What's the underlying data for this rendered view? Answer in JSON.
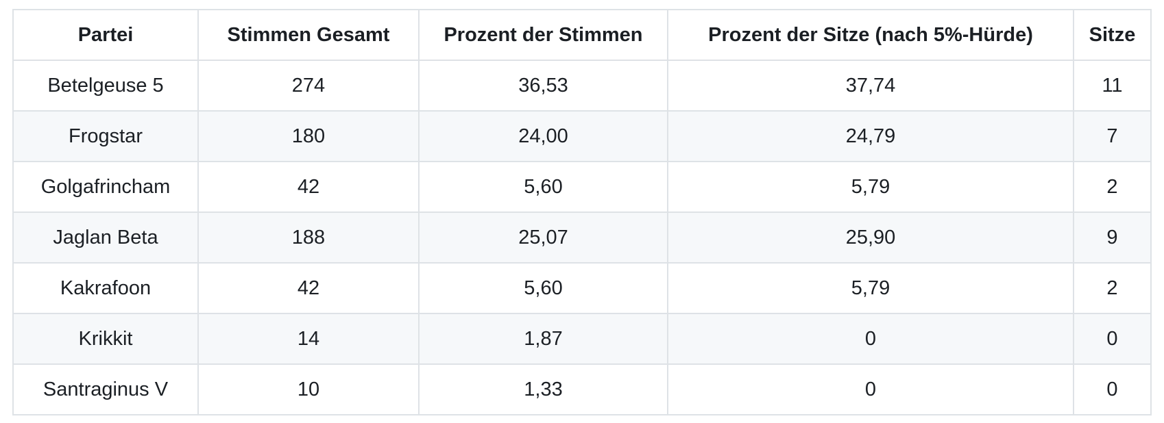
{
  "chart_data": {
    "type": "table",
    "columns": [
      "Partei",
      "Stimmen Gesamt",
      "Prozent der Stimmen",
      "Prozent der Sitze (nach 5%-Hürde)",
      "Sitze"
    ],
    "rows": [
      [
        "Betelgeuse 5",
        "274",
        "36,53",
        "37,74",
        "11"
      ],
      [
        "Frogstar",
        "180",
        "24,00",
        "24,79",
        "7"
      ],
      [
        "Golgafrincham",
        "42",
        "5,60",
        "5,79",
        "2"
      ],
      [
        "Jaglan Beta",
        "188",
        "25,07",
        "25,90",
        "9"
      ],
      [
        "Kakrafoon",
        "42",
        "5,60",
        "5,79",
        "2"
      ],
      [
        "Krikkit",
        "14",
        "1,87",
        "0",
        "0"
      ],
      [
        "Santraginus V",
        "10",
        "1,33",
        "0",
        "0"
      ]
    ]
  },
  "colors": {
    "stripe_background": "#f6f8fa",
    "row_background": "#ffffff",
    "border": "#dee2e6",
    "text": "#1b1f24"
  }
}
